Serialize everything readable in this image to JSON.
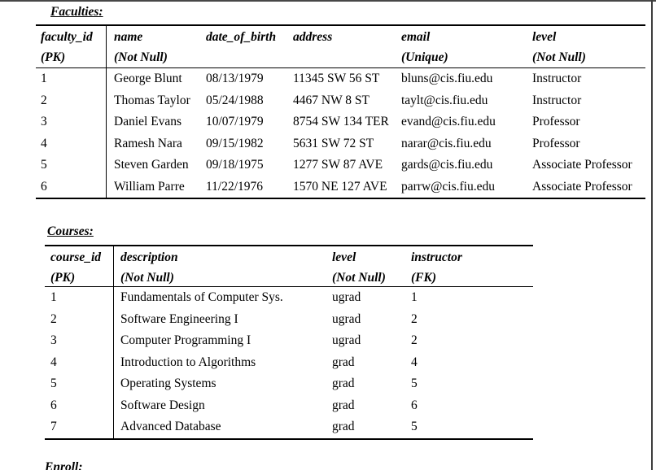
{
  "page": {
    "background": "#ffffff",
    "top_rule_color": "#474747",
    "right_edge_color": "#3d3d3d"
  },
  "faculties": {
    "title": "Faculties:",
    "header": {
      "col1_name": "faculty_id",
      "col1_constraint": "(PK)",
      "col2_name": "name",
      "col2_constraint": "(Not Null)",
      "col3_name": "date_of_birth",
      "col3_constraint": "",
      "col4_name": "address",
      "col4_constraint": "",
      "col5_name": "email",
      "col5_constraint": "(Unique)",
      "col6_name": "level",
      "col6_constraint": "(Not Null)"
    },
    "rows": [
      [
        "1",
        "George Blunt",
        "08/13/1979",
        "11345 SW 56 ST",
        "bluns@cis.fiu.edu",
        "Instructor"
      ],
      [
        "2",
        "Thomas Taylor",
        "05/24/1988",
        "4467 NW 8 ST",
        "taylt@cis.fiu.edu",
        "Instructor"
      ],
      [
        "3",
        "Daniel Evans",
        "10/07/1979",
        "8754 SW 134 TER",
        "evand@cis.fiu.edu",
        "Professor"
      ],
      [
        "4",
        "Ramesh Nara",
        "09/15/1982",
        "5631 SW 72 ST",
        "narar@cis.fiu.edu",
        "Professor"
      ],
      [
        "5",
        "Steven Garden",
        "09/18/1975",
        "1277 SW 87 AVE",
        "gards@cis.fiu.edu",
        "Associate Professor"
      ],
      [
        "6",
        "William Parre",
        "11/22/1976",
        "1570 NE 127 AVE",
        "parrw@cis.fiu.edu",
        "Associate Professor"
      ]
    ]
  },
  "courses": {
    "title": "Courses:",
    "header": {
      "col1_name": "course_id",
      "col1_constraint": "(PK)",
      "col2_name": "description",
      "col2_constraint": "(Not Null)",
      "col3_name": "level",
      "col3_constraint": "(Not Null)",
      "col4_name": "instructor",
      "col4_constraint": "(FK)"
    },
    "rows": [
      [
        "1",
        "Fundamentals of Computer Sys.",
        "ugrad",
        "1"
      ],
      [
        "2",
        "Software Engineering I",
        "ugrad",
        "2"
      ],
      [
        "3",
        "Computer Programming I",
        "ugrad",
        "2"
      ],
      [
        "4",
        "Introduction to Algorithms",
        "grad",
        "4"
      ],
      [
        "5",
        "Operating Systems",
        "grad",
        "5"
      ],
      [
        "6",
        "Software Design",
        "grad",
        "6"
      ],
      [
        "7",
        "Advanced Database",
        "grad",
        "5"
      ]
    ]
  },
  "enroll": {
    "title": "Enroll:"
  }
}
